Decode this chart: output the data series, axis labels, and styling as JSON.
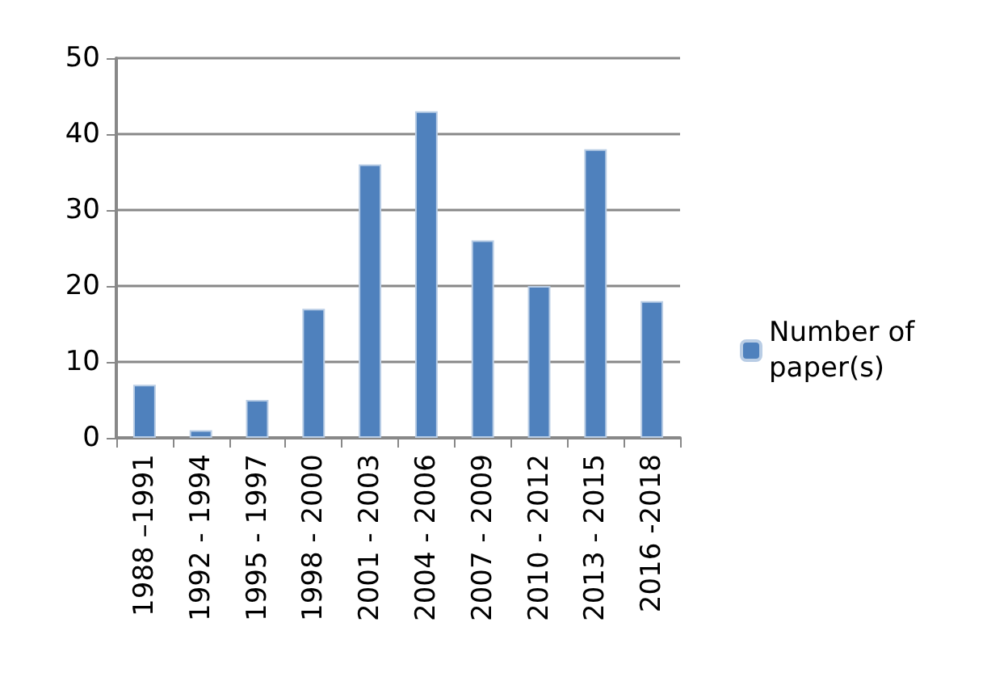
{
  "chart_data": {
    "type": "bar",
    "categories": [
      "1988 –1991",
      "1992 - 1994",
      "1995 - 1997",
      "1998 - 2000",
      "2001 - 2003",
      "2004 - 2006",
      "2007 - 2009",
      "2010 - 2012",
      "2013 - 2015",
      "2016 -2018"
    ],
    "series": [
      {
        "name": "Number of paper(s)",
        "color": "#4f81bd",
        "values": [
          7,
          1,
          5,
          17,
          36,
          43,
          26,
          20,
          38,
          18
        ]
      }
    ],
    "ylim": [
      0,
      50
    ],
    "yticks": [
      0,
      10,
      20,
      30,
      40,
      50
    ],
    "grid": "y",
    "legend": "right"
  }
}
